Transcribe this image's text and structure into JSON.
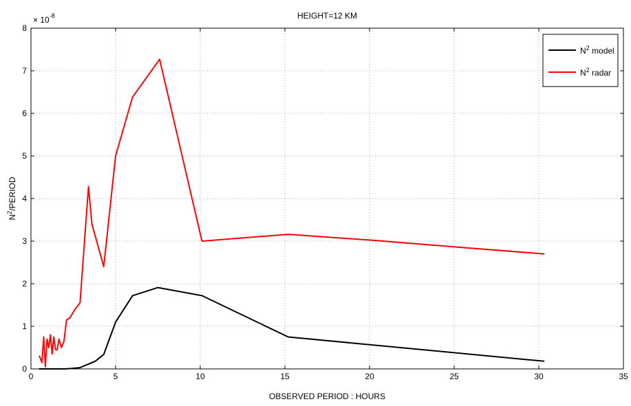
{
  "chart_data": {
    "type": "line",
    "title": "HEIGHT=12 KM",
    "xlabel": "OBSERVED PERIOD : HOURS",
    "ylabel": {
      "base": "N",
      "sup": "2",
      "rest": "/PERIOD"
    },
    "xlim": [
      0,
      35
    ],
    "ylim": [
      0,
      8
    ],
    "x_ticks": [
      0,
      5,
      10,
      15,
      20,
      25,
      30,
      35
    ],
    "y_ticks": [
      0,
      1,
      2,
      3,
      4,
      5,
      6,
      7,
      8
    ],
    "y_multiplier": {
      "base": "× 10",
      "exponent": "-8"
    },
    "grid": true,
    "legend_position": "top-right",
    "series": [
      {
        "name": "N2 model",
        "legend_base": "N",
        "legend_sup": "2",
        "legend_rest": " model",
        "color": "#000000",
        "x": [
          0.5,
          0.8,
          1.2,
          1.6,
          2.0,
          2.4,
          2.9,
          3.5,
          3.8,
          4.3,
          5.0,
          6.0,
          7.5,
          10.1,
          15.2,
          30.3
        ],
        "y": [
          0.0,
          0.0,
          0.0,
          0.0,
          0.0,
          0.01,
          0.03,
          0.13,
          0.18,
          0.34,
          1.1,
          1.72,
          1.91,
          1.72,
          0.75,
          0.18
        ]
      },
      {
        "name": "N2 radar",
        "legend_base": "N",
        "legend_sup": "2",
        "legend_rest": " radar",
        "color": "#ff0000",
        "x": [
          0.5,
          0.65,
          0.75,
          0.85,
          0.95,
          1.05,
          1.15,
          1.25,
          1.35,
          1.45,
          1.55,
          1.65,
          1.8,
          1.95,
          2.1,
          2.3,
          2.6,
          2.9,
          3.4,
          3.6,
          4.3,
          5.0,
          6.0,
          7.6,
          10.1,
          15.2,
          20.2,
          25.2,
          30.3
        ],
        "y": [
          0.3,
          0.15,
          0.75,
          0.05,
          0.7,
          0.5,
          0.8,
          0.35,
          0.75,
          0.45,
          0.45,
          0.7,
          0.5,
          0.65,
          1.15,
          1.2,
          1.4,
          1.55,
          4.28,
          3.4,
          2.4,
          5.0,
          6.38,
          7.27,
          3.0,
          3.16,
          3.02,
          2.86,
          2.7
        ]
      }
    ]
  }
}
